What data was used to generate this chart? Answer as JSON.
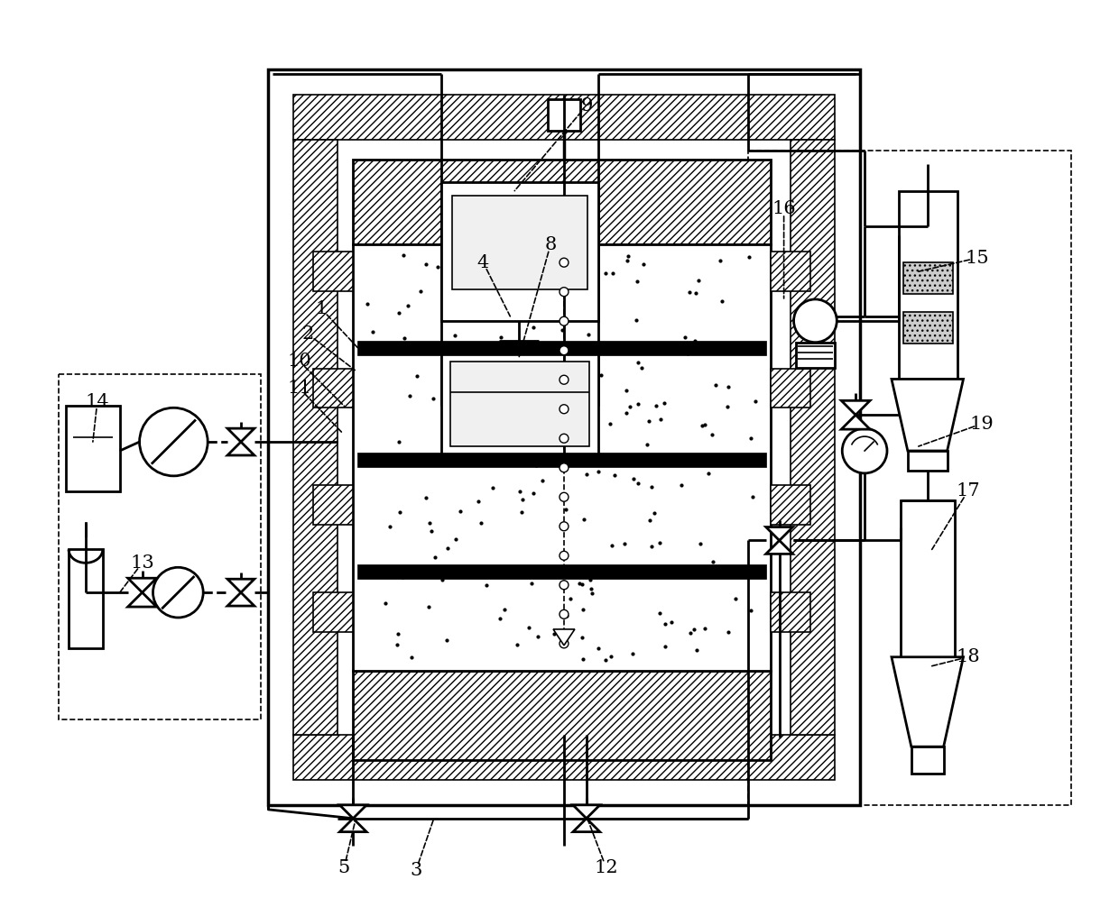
{
  "bg_color": "#ffffff",
  "lw_main": 2.0,
  "lw_thin": 1.2,
  "lw_thick": 2.5,
  "fig_width": 12.4,
  "fig_height": 10.06,
  "label_fontsize": 15
}
